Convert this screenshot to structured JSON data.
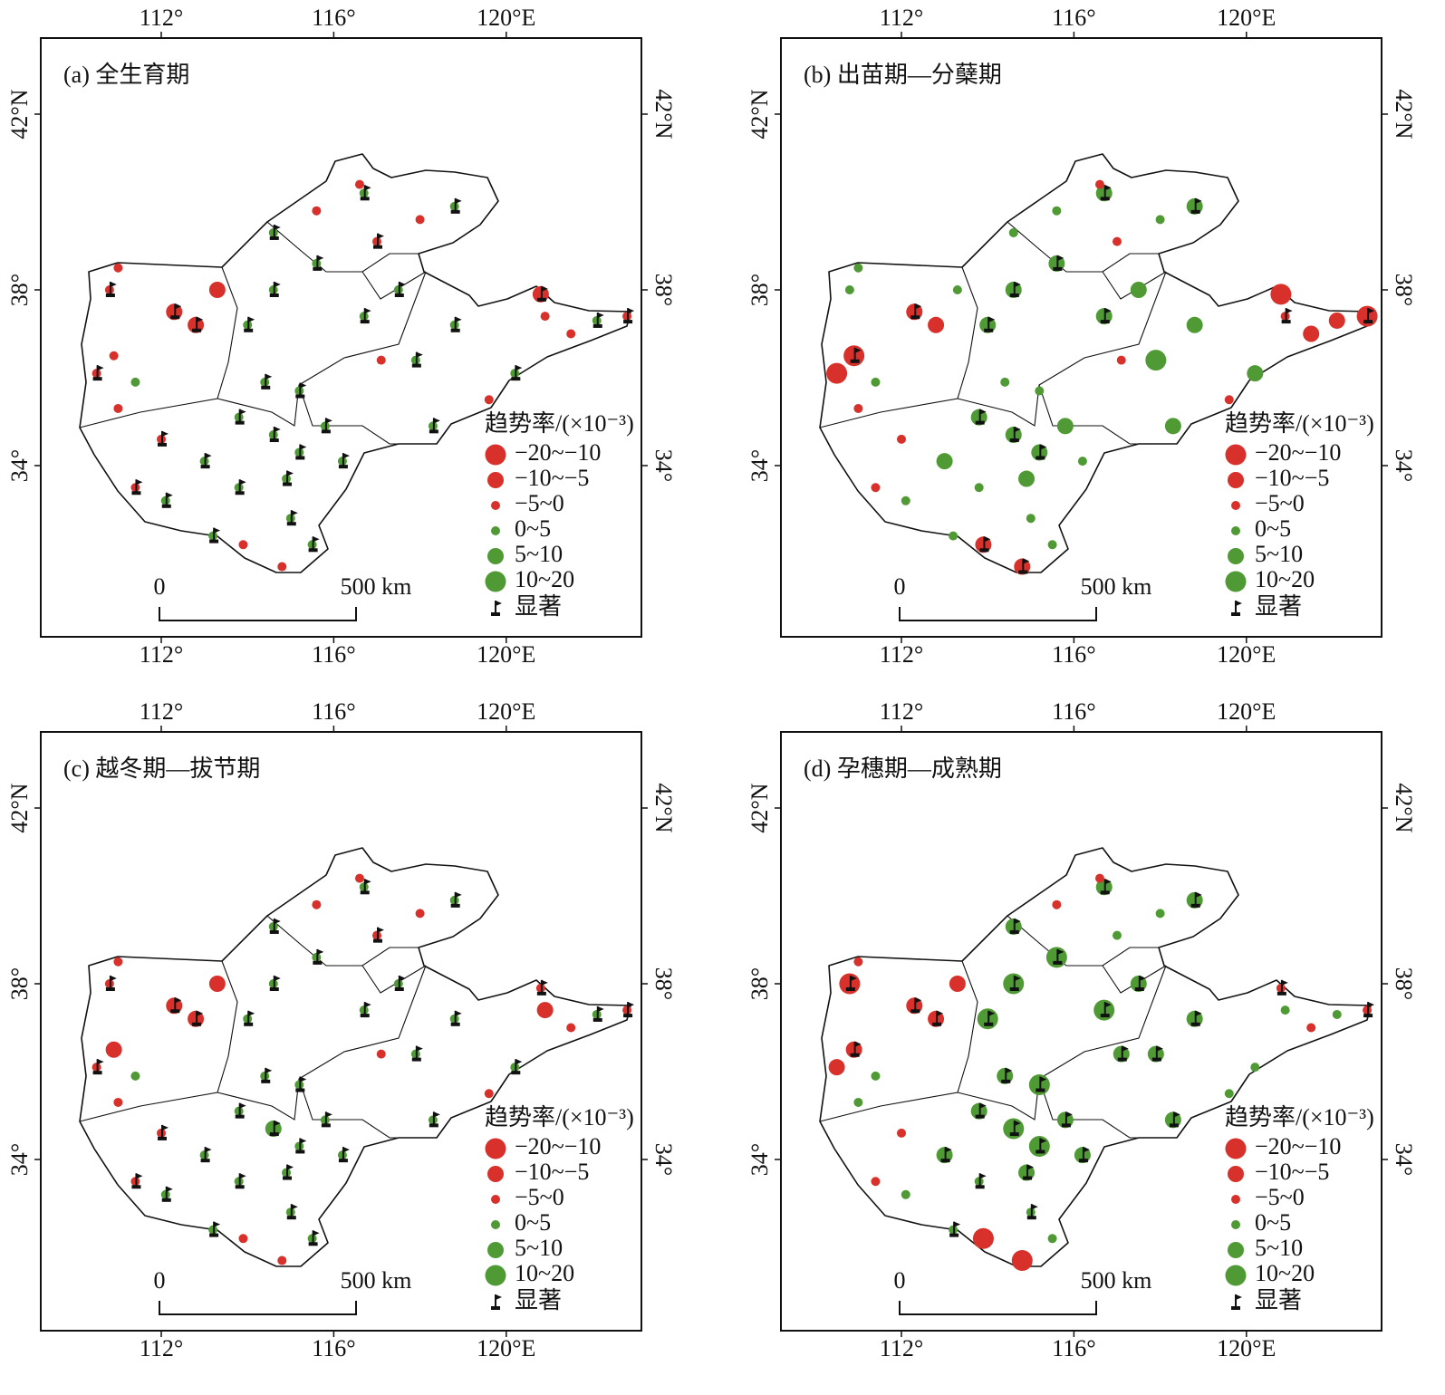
{
  "axes": {
    "lon_ticks": [
      {
        "value": 112,
        "label": "112°"
      },
      {
        "value": 116,
        "label": "116°"
      },
      {
        "value": 120,
        "label": "120°E"
      }
    ],
    "lat_ticks": [
      {
        "value": 42,
        "label": "42°N"
      },
      {
        "value": 38,
        "label": "38°"
      },
      {
        "value": 34,
        "label": "34°"
      }
    ]
  },
  "legend": {
    "title": "趋势率/(×10⁻³)",
    "classes": [
      {
        "label": "−20~−10",
        "color": "#d8302b"
      },
      {
        "label": "−10~−5",
        "color": "#d8302b"
      },
      {
        "label": "−5~0",
        "color": "#d8302b"
      },
      {
        "label": "0~5",
        "color": "#4f9a35"
      },
      {
        "label": "5~10",
        "color": "#4f9a35"
      },
      {
        "label": "10~20",
        "color": "#4f9a35"
      }
    ],
    "significant": "显著"
  },
  "scale_bar": {
    "start": "0",
    "end": "500 km"
  },
  "stations": [
    {
      "lon": 111.0,
      "lat": 38.5
    },
    {
      "lon": 110.8,
      "lat": 38.0
    },
    {
      "lon": 112.3,
      "lat": 37.5
    },
    {
      "lon": 113.3,
      "lat": 38.0
    },
    {
      "lon": 112.8,
      "lat": 37.2
    },
    {
      "lon": 110.9,
      "lat": 36.5
    },
    {
      "lon": 110.5,
      "lat": 36.1
    },
    {
      "lon": 111.4,
      "lat": 35.9
    },
    {
      "lon": 111.0,
      "lat": 35.3
    },
    {
      "lon": 112.0,
      "lat": 34.6
    },
    {
      "lon": 111.4,
      "lat": 33.5
    },
    {
      "lon": 112.1,
      "lat": 33.2
    },
    {
      "lon": 113.2,
      "lat": 32.4
    },
    {
      "lon": 113.9,
      "lat": 32.2
    },
    {
      "lon": 114.8,
      "lat": 31.7
    },
    {
      "lon": 115.5,
      "lat": 32.2
    },
    {
      "lon": 115.0,
      "lat": 32.8
    },
    {
      "lon": 113.8,
      "lat": 33.5
    },
    {
      "lon": 113.0,
      "lat": 34.1
    },
    {
      "lon": 113.8,
      "lat": 35.1
    },
    {
      "lon": 114.6,
      "lat": 34.7
    },
    {
      "lon": 115.2,
      "lat": 34.3
    },
    {
      "lon": 114.9,
      "lat": 33.7
    },
    {
      "lon": 115.8,
      "lat": 34.9
    },
    {
      "lon": 114.4,
      "lat": 35.9
    },
    {
      "lon": 115.2,
      "lat": 35.7
    },
    {
      "lon": 114.0,
      "lat": 37.2
    },
    {
      "lon": 114.6,
      "lat": 38.0
    },
    {
      "lon": 115.6,
      "lat": 38.6
    },
    {
      "lon": 114.6,
      "lat": 39.3
    },
    {
      "lon": 115.6,
      "lat": 39.8
    },
    {
      "lon": 116.7,
      "lat": 40.2
    },
    {
      "lon": 117.0,
      "lat": 39.1
    },
    {
      "lon": 118.0,
      "lat": 39.6
    },
    {
      "lon": 118.8,
      "lat": 39.9
    },
    {
      "lon": 116.6,
      "lat": 40.4
    },
    {
      "lon": 116.7,
      "lat": 37.4
    },
    {
      "lon": 117.5,
      "lat": 38.0
    },
    {
      "lon": 117.1,
      "lat": 36.4
    },
    {
      "lon": 117.9,
      "lat": 36.4
    },
    {
      "lon": 118.8,
      "lat": 37.2
    },
    {
      "lon": 119.6,
      "lat": 35.5
    },
    {
      "lon": 120.2,
      "lat": 36.1
    },
    {
      "lon": 120.8,
      "lat": 37.9
    },
    {
      "lon": 120.9,
      "lat": 37.4
    },
    {
      "lon": 121.5,
      "lat": 37.0
    },
    {
      "lon": 122.1,
      "lat": 37.3
    },
    {
      "lon": 122.8,
      "lat": 37.4
    },
    {
      "lon": 118.3,
      "lat": 34.9
    },
    {
      "lon": 116.2,
      "lat": 34.1
    }
  ],
  "panels": [
    {
      "title": "(a) 全生育期",
      "classes": [
        2,
        2,
        1,
        1,
        1,
        2,
        2,
        3,
        2,
        2,
        2,
        3,
        3,
        2,
        2,
        3,
        3,
        3,
        3,
        3,
        3,
        3,
        3,
        3,
        3,
        3,
        3,
        3,
        3,
        3,
        2,
        3,
        2,
        2,
        3,
        2,
        3,
        3,
        2,
        3,
        3,
        2,
        3,
        1,
        2,
        2,
        3,
        2,
        3,
        3
      ],
      "significant": [
        0,
        1,
        1,
        0,
        1,
        0,
        1,
        0,
        0,
        1,
        1,
        1,
        1,
        0,
        0,
        1,
        1,
        1,
        1,
        1,
        1,
        1,
        1,
        1,
        1,
        1,
        1,
        1,
        1,
        1,
        0,
        1,
        1,
        0,
        1,
        0,
        1,
        1,
        0,
        1,
        1,
        0,
        1,
        1,
        0,
        0,
        1,
        1,
        1,
        1
      ]
    },
    {
      "title": "(b) 出苗期—分蘖期",
      "classes": [
        3,
        3,
        1,
        3,
        1,
        0,
        0,
        3,
        2,
        2,
        2,
        3,
        3,
        1,
        1,
        3,
        3,
        3,
        4,
        4,
        4,
        4,
        4,
        4,
        3,
        3,
        4,
        4,
        4,
        3,
        3,
        4,
        2,
        3,
        4,
        2,
        4,
        4,
        2,
        5,
        4,
        2,
        4,
        0,
        2,
        1,
        1,
        0,
        4,
        3
      ],
      "significant": [
        0,
        0,
        1,
        0,
        0,
        1,
        0,
        0,
        0,
        0,
        0,
        0,
        0,
        1,
        1,
        0,
        0,
        0,
        0,
        1,
        1,
        1,
        0,
        0,
        0,
        0,
        1,
        1,
        1,
        0,
        0,
        1,
        0,
        0,
        1,
        0,
        1,
        0,
        0,
        0,
        0,
        0,
        0,
        0,
        1,
        0,
        0,
        1,
        0,
        0
      ]
    },
    {
      "title": "(c) 越冬期—拔节期",
      "classes": [
        2,
        2,
        1,
        1,
        1,
        1,
        2,
        3,
        2,
        2,
        2,
        3,
        3,
        2,
        2,
        3,
        3,
        3,
        3,
        3,
        4,
        3,
        3,
        3,
        3,
        3,
        3,
        3,
        3,
        3,
        2,
        3,
        2,
        2,
        3,
        2,
        3,
        3,
        2,
        3,
        3,
        2,
        3,
        2,
        1,
        2,
        3,
        2,
        3,
        3
      ],
      "significant": [
        0,
        1,
        1,
        0,
        1,
        0,
        1,
        0,
        0,
        1,
        1,
        1,
        1,
        0,
        0,
        1,
        1,
        1,
        1,
        1,
        1,
        1,
        1,
        1,
        1,
        1,
        1,
        1,
        1,
        1,
        0,
        1,
        1,
        0,
        1,
        0,
        1,
        1,
        0,
        1,
        1,
        0,
        1,
        1,
        0,
        0,
        1,
        1,
        1,
        1
      ]
    },
    {
      "title": "(d) 孕穗期—成熟期",
      "classes": [
        2,
        0,
        1,
        1,
        1,
        1,
        1,
        3,
        3,
        2,
        2,
        3,
        3,
        0,
        0,
        3,
        3,
        3,
        4,
        4,
        5,
        5,
        4,
        4,
        4,
        5,
        5,
        5,
        5,
        4,
        2,
        4,
        3,
        3,
        4,
        2,
        5,
        4,
        4,
        4,
        4,
        3,
        3,
        2,
        3,
        2,
        3,
        2,
        4,
        4
      ],
      "significant": [
        0,
        1,
        1,
        0,
        1,
        1,
        0,
        0,
        0,
        0,
        0,
        0,
        1,
        0,
        0,
        0,
        1,
        1,
        1,
        1,
        1,
        1,
        1,
        1,
        1,
        1,
        1,
        1,
        1,
        1,
        0,
        1,
        0,
        0,
        1,
        0,
        1,
        1,
        1,
        1,
        1,
        0,
        0,
        1,
        0,
        0,
        0,
        1,
        1,
        1
      ]
    }
  ]
}
